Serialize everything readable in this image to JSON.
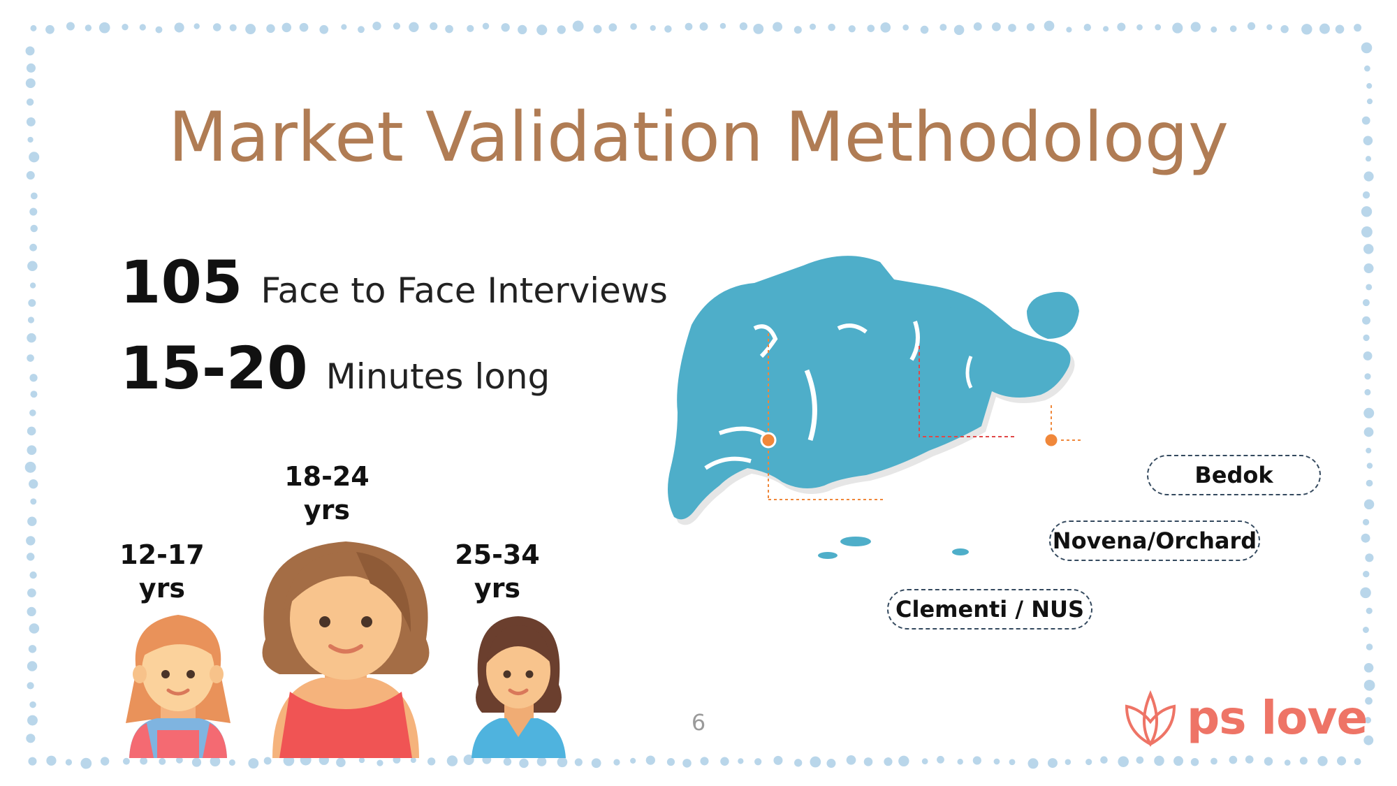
{
  "slide": {
    "title": "Market Validation Methodology",
    "page_number": "6"
  },
  "stats": [
    {
      "value": "105",
      "label": "Face to Face Interviews"
    },
    {
      "value": "15-20",
      "label": "Minutes long"
    }
  ],
  "age_groups": [
    {
      "range": "12-17",
      "unit": "yrs"
    },
    {
      "range": "18-24",
      "unit": "yrs"
    },
    {
      "range": "25-34",
      "unit": "yrs"
    }
  ],
  "locations": [
    "Bedok",
    "Novena/Orchard",
    "Clementi / NUS"
  ],
  "logo": {
    "text": "ps love"
  },
  "colors": {
    "title": "#b07c54",
    "map": "#4eaec9",
    "marker": "#f0873a",
    "logo": "#ee7466",
    "border_dots": "#b9d6ea"
  },
  "icons": [
    "girl-avatar-icon",
    "woman-avatar-icon",
    "young-woman-avatar-icon",
    "lotus-logo-icon"
  ]
}
